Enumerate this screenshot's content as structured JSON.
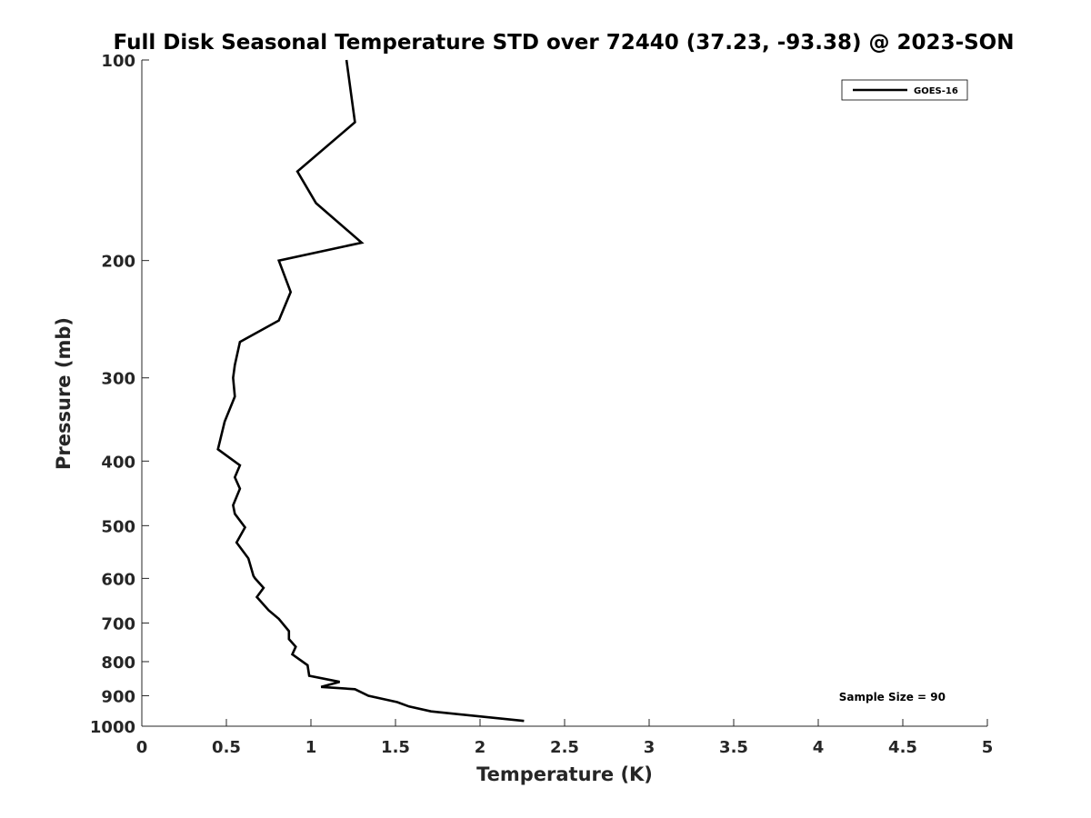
{
  "chart_data": {
    "type": "line",
    "title": "Full Disk Seasonal Temperature STD over 72440 (37.23, -93.38) @ 2023-SON",
    "xlabel": "Temperature (K)",
    "ylabel": "Pressure (mb)",
    "xlim": [
      0,
      5
    ],
    "ylim": [
      100,
      1000
    ],
    "y_scale": "log",
    "y_reversed": true,
    "x_ticks": [
      0,
      0.5,
      1,
      1.5,
      2,
      2.5,
      3,
      3.5,
      4,
      4.5,
      5
    ],
    "x_tick_labels": [
      "0",
      "0.5",
      "1",
      "1.5",
      "2",
      "2.5",
      "3",
      "3.5",
      "4",
      "4.5",
      "5"
    ],
    "y_ticks": [
      100,
      200,
      300,
      400,
      500,
      600,
      700,
      800,
      900,
      1000
    ],
    "y_tick_labels": [
      "100",
      "200",
      "300",
      "400",
      "500",
      "600",
      "700",
      "800",
      "900",
      "1000"
    ],
    "grid": false,
    "legend_position": "top-right",
    "annotation": "Sample Size = 90",
    "series": [
      {
        "name": "GOES-16",
        "color": "#000000",
        "x": [
          1.21,
          1.26,
          0.92,
          1.03,
          1.3,
          0.81,
          0.88,
          0.81,
          0.58,
          0.55,
          0.54,
          0.55,
          0.49,
          0.45,
          0.58,
          0.55,
          0.58,
          0.54,
          0.55,
          0.61,
          0.56,
          0.63,
          0.66,
          0.67,
          0.72,
          0.68,
          0.75,
          0.81,
          0.87,
          0.87,
          0.91,
          0.89,
          0.98,
          0.99,
          1.17,
          1.06,
          1.26,
          1.34,
          1.51,
          1.58,
          1.71,
          2.26
        ],
        "y": [
          100,
          124,
          147,
          164,
          188,
          200,
          223,
          246,
          265,
          287,
          300,
          320,
          349,
          384,
          406,
          423,
          440,
          466,
          480,
          503,
          530,
          560,
          595,
          600,
          620,
          640,
          670,
          690,
          720,
          740,
          760,
          780,
          810,
          840,
          858,
          873,
          880,
          900,
          920,
          934,
          950,
          982
        ]
      }
    ]
  }
}
